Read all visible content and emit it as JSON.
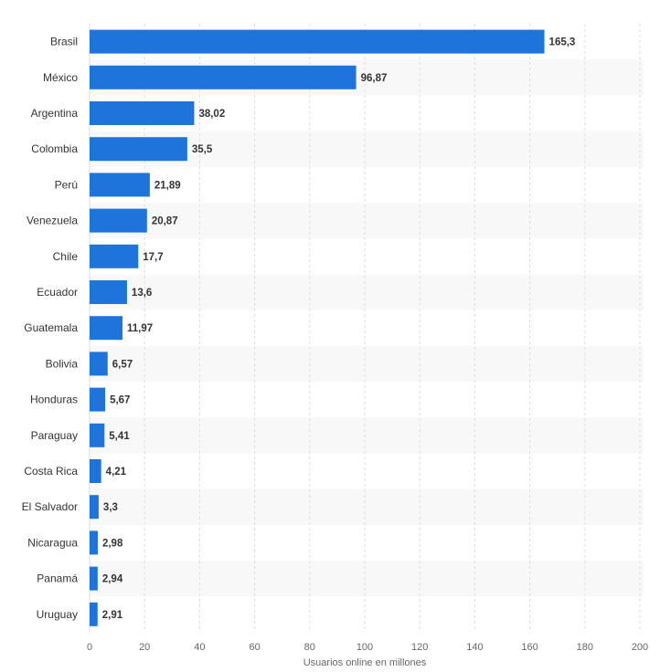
{
  "chart_data": {
    "type": "bar",
    "orientation": "horizontal",
    "categories": [
      "Brasil",
      "México",
      "Argentina",
      "Colombia",
      "Perú",
      "Venezuela",
      "Chile",
      "Ecuador",
      "Guatemala",
      "Bolivia",
      "Honduras",
      "Paraguay",
      "Costa Rica",
      "El Salvador",
      "Nicaragua",
      "Panamá",
      "Uruguay"
    ],
    "values": [
      165.3,
      96.87,
      38.02,
      35.5,
      21.89,
      20.87,
      17.7,
      13.6,
      11.97,
      6.57,
      5.67,
      5.41,
      4.21,
      3.3,
      2.98,
      2.94,
      2.91
    ],
    "value_labels": [
      "165,3",
      "96,87",
      "38,02",
      "35,5",
      "21,89",
      "20,87",
      "17,7",
      "13,6",
      "11,97",
      "6,57",
      "5,67",
      "5,41",
      "4,21",
      "3,3",
      "2,98",
      "2,94",
      "2,91"
    ],
    "title": "",
    "xlabel": "Usuarios online en millones",
    "ylabel": "",
    "xlim": [
      0,
      200
    ],
    "xticks": [
      0,
      20,
      40,
      60,
      80,
      100,
      120,
      140,
      160,
      180,
      200
    ],
    "xtick_labels": [
      "0",
      "20",
      "40",
      "60",
      "80",
      "100",
      "120",
      "140",
      "160",
      "180",
      "200"
    ],
    "grid": "vertical-dashed",
    "alternating_row_bands": true,
    "colors": {
      "bar": "#1f74dc",
      "band": "#f8f8f8",
      "grid": "#dddddd",
      "text": "#333333",
      "axis_text": "#666666"
    }
  }
}
